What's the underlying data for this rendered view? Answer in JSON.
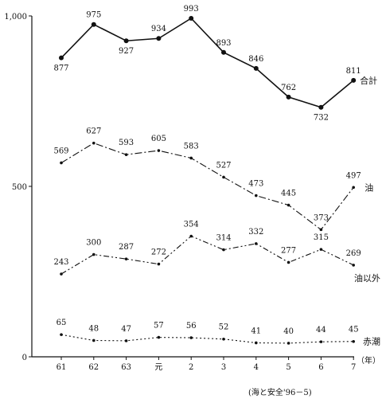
{
  "chart_data": {
    "type": "line",
    "title": "",
    "xlabel": "（年）",
    "ylabel": "",
    "categories": [
      "61",
      "62",
      "63",
      "元",
      "2",
      "3",
      "4",
      "5",
      "6",
      "7"
    ],
    "y_ticks": [
      "0",
      "500",
      "1,000"
    ],
    "ylim": [
      0,
      1000
    ],
    "grid": false,
    "legend": "inline",
    "series": [
      {
        "name": "合計",
        "style": "solid",
        "marker": "dot",
        "values": [
          877,
          975,
          927,
          934,
          993,
          893,
          846,
          762,
          732,
          811
        ]
      },
      {
        "name": "油",
        "style": "dashdot",
        "marker": "small",
        "values": [
          569,
          627,
          593,
          605,
          583,
          527,
          473,
          445,
          373,
          497
        ]
      },
      {
        "name": "油以外",
        "style": "dashdotdot",
        "marker": "small",
        "values": [
          243,
          300,
          287,
          272,
          354,
          314,
          332,
          277,
          315,
          269
        ]
      },
      {
        "name": "赤潮",
        "style": "dotted",
        "marker": "small",
        "values": [
          65,
          48,
          47,
          57,
          56,
          52,
          41,
          40,
          44,
          45
        ]
      }
    ]
  },
  "source_note": "(海と安全'96－5)"
}
